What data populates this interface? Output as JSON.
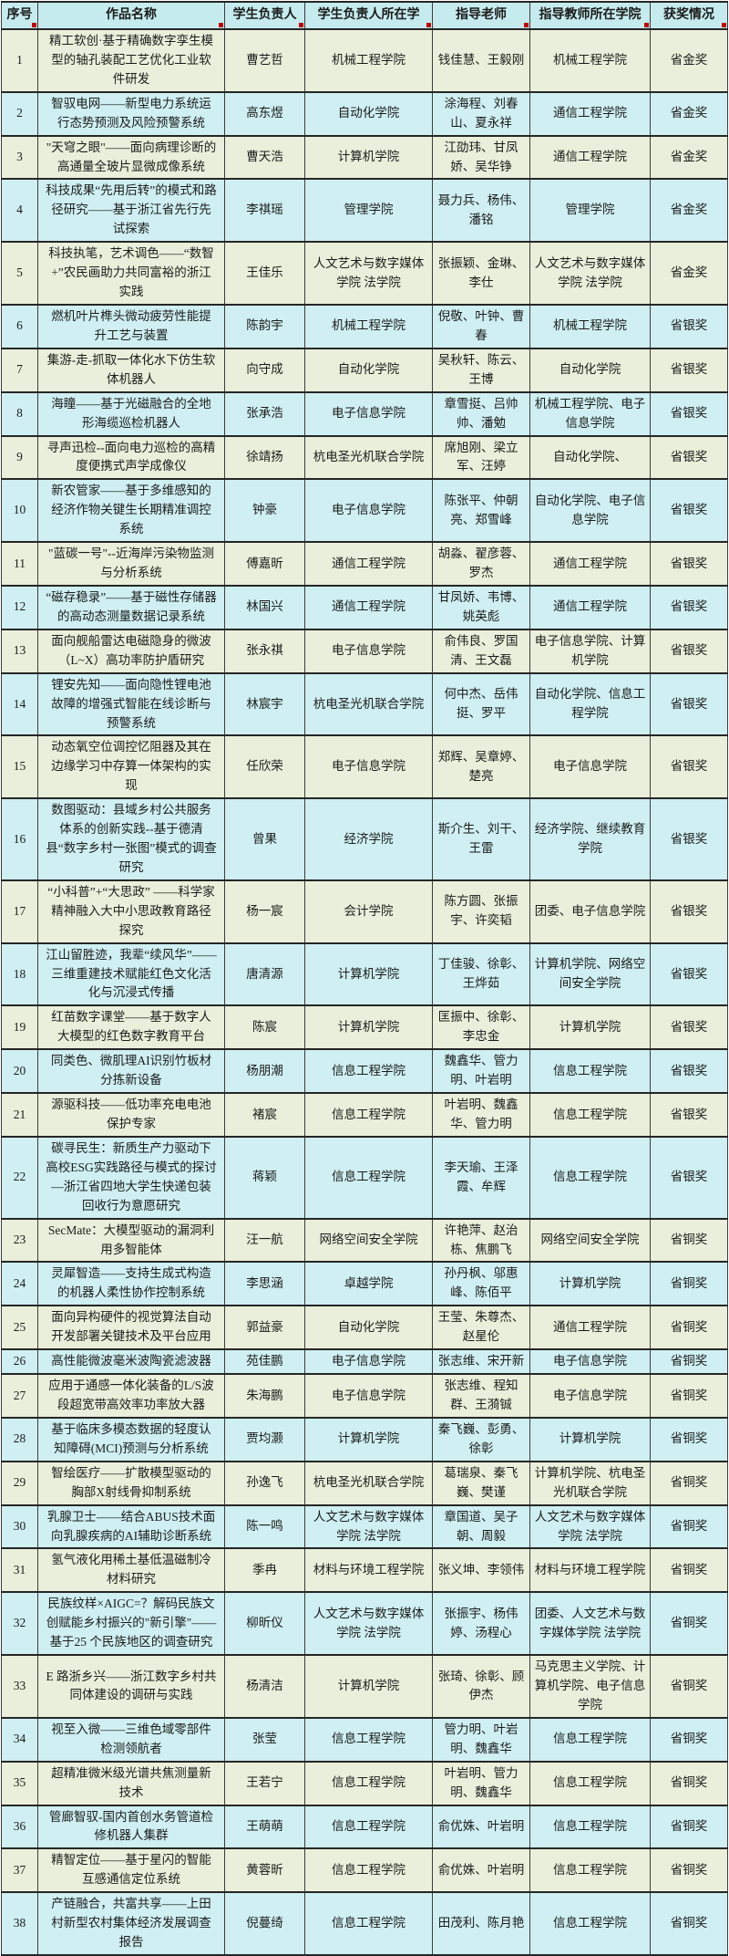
{
  "table": {
    "colors": {
      "header_bg": "#c6ebee",
      "row_cyan": "#cfeff2",
      "row_green": "#e9efda",
      "border": "#3c3c3c",
      "marker_red": "#c00000"
    },
    "columns": [
      "序号",
      "作品名称",
      "学生负责人",
      "学生负责人所在学",
      "指导老师",
      "指导教师所在学院",
      "获奖情况"
    ],
    "rows": [
      {
        "no": "1",
        "title": "精工软创·基于精确数字孪生模型的轴孔装配工艺优化工业软件研发",
        "student": "曹艺哲",
        "student_college": "机械工程学院",
        "advisors": "钱佳慧、王毅刚",
        "advisor_college": "机械工程学院",
        "award": "省金奖"
      },
      {
        "no": "2",
        "title": "智驭电网——新型电力系统运行态势预测及风险预警系统",
        "student": "高东煜",
        "student_college": "自动化学院",
        "advisors": "涂海程、刘春山、夏永祥",
        "advisor_college": "通信工程学院",
        "award": "省金奖"
      },
      {
        "no": "3",
        "title": "\"天穹之眼\"——面向病理诊断的高通量全玻片显微成像系统",
        "student": "曹天浩",
        "student_college": "计算机学院",
        "advisors": "江劭玮、甘凤娇、吴华铮",
        "advisor_college": "通信工程学院",
        "award": "省金奖"
      },
      {
        "no": "4",
        "title": "科技成果“先用后转”的模式和路径研究——基于浙江省先行先试探索",
        "student": "李祺瑶",
        "student_college": "管理学院",
        "advisors": "聂力兵、杨伟、潘铭",
        "advisor_college": "管理学院",
        "award": "省金奖"
      },
      {
        "no": "5",
        "title": "科技执笔，艺术调色——“数智+”农民画助力共同富裕的浙江实践",
        "student": "王佳乐",
        "student_college": "人文艺术与数字媒体学院 法学院",
        "advisors": "张振颖、金琳、李仕",
        "advisor_college": "人文艺术与数字媒体学院 法学院",
        "award": "省金奖"
      },
      {
        "no": "6",
        "title": "燃机叶片榫头微动疲劳性能提升工艺与装置",
        "student": "陈韵宇",
        "student_college": "机械工程学院",
        "advisors": "倪敬、叶钟、曹春",
        "advisor_college": "机械工程学院",
        "award": "省银奖"
      },
      {
        "no": "7",
        "title": "集游-走-抓取一体化水下仿生软体机器人",
        "student": "向守成",
        "student_college": "自动化学院",
        "advisors": "吴秋轩、陈云、王博",
        "advisor_college": "自动化学院",
        "award": "省银奖"
      },
      {
        "no": "8",
        "title": "海瞳——基于光磁融合的全地形海缆巡检机器人",
        "student": "张承浩",
        "student_college": "电子信息学院",
        "advisors": "章雪挺、吕帅帅、潘勉",
        "advisor_college": "机械工程学院、电子信息学院",
        "award": "省银奖"
      },
      {
        "no": "9",
        "title": "寻声迅检--面向电力巡检的高精度便携式声学成像仪",
        "student": "徐靖扬",
        "student_college": "杭电圣光机联合学院",
        "advisors": "席旭刚、梁立军、汪婷",
        "advisor_college": "自动化学院、",
        "award": "省银奖"
      },
      {
        "no": "10",
        "title": "新农管家——基于多维感知的经济作物关键生长期精准调控系统",
        "student": "钟豪",
        "student_college": "电子信息学院",
        "advisors": "陈张平、仲朝亮、郑雪峰",
        "advisor_college": "自动化学院、电子信息学院",
        "award": "省银奖"
      },
      {
        "no": "11",
        "title": "\"蓝碳一号\"--近海岸污染物监测与分析系统",
        "student": "傅嘉昕",
        "student_college": "通信工程学院",
        "advisors": "胡淼、翟彦蓉、罗杰",
        "advisor_college": "通信工程学院",
        "award": "省银奖"
      },
      {
        "no": "12",
        "title": "“磁存稳录”——基于磁性存储器的高动态测量数据记录系统",
        "student": "林国兴",
        "student_college": "通信工程学院",
        "advisors": "甘凤娇、韦博、姚英彪",
        "advisor_college": "通信工程学院",
        "award": "省银奖"
      },
      {
        "no": "13",
        "title": "面向舰船雷达电磁隐身的微波（L~X）高功率防护盾研究",
        "student": "张永祺",
        "student_college": "电子信息学院",
        "advisors": "俞伟良、罗国清、王文磊",
        "advisor_college": "电子信息学院、计算机学院",
        "award": "省银奖"
      },
      {
        "no": "14",
        "title": "锂安先知——面向隐性锂电池故障的增强式智能在线诊断与预警系统",
        "student": "林宸宇",
        "student_college": "杭电圣光机联合学院",
        "advisors": "何中杰、岳伟挺、罗平",
        "advisor_college": "自动化学院、信息工程学院",
        "award": "省银奖"
      },
      {
        "no": "15",
        "title": "动态氧空位调控忆阻器及其在边缘学习中存算一体架构的实现",
        "student": "任欣荣",
        "student_college": "电子信息学院",
        "advisors": "郑辉、吴章婷、楚亮",
        "advisor_college": "电子信息学院",
        "award": "省银奖"
      },
      {
        "no": "16",
        "title": "数图驱动：县域乡村公共服务体系的创新实践--基于德清县“数字乡村一张图”模式的调查研究",
        "student": "曾果",
        "student_college": "经济学院",
        "advisors": "斯介生、刘干、王雷",
        "advisor_college": "经济学院、继续教育学院",
        "award": "省银奖"
      },
      {
        "no": "17",
        "title": "“小科普”+“大思政” ——科学家精神融入大中小思政教育路径探究",
        "student": "杨一宸",
        "student_college": "会计学院",
        "advisors": "陈方圆、张振宇、许奕韬",
        "advisor_college": "团委、电子信息学院",
        "award": "省银奖"
      },
      {
        "no": "18",
        "title": "江山留胜迹，我辈“续风华”——三维重建技术赋能红色文化活化与沉浸式传播",
        "student": "唐清源",
        "student_college": "计算机学院",
        "advisors": "丁佳骏、徐彰、王烨茹",
        "advisor_college": "计算机学院、网络空间安全学院",
        "award": "省银奖"
      },
      {
        "no": "19",
        "title": "红苗数字课堂——基于数字人大模型的红色数字教育平台",
        "student": "陈宸",
        "student_college": "计算机学院",
        "advisors": "匡振中、徐彰、李忠金",
        "advisor_college": "计算机学院",
        "award": "省银奖"
      },
      {
        "no": "20",
        "title": "同类色、微肌理AI识别竹板材分拣新设备",
        "student": "杨朋潮",
        "student_college": "信息工程学院",
        "advisors": "魏鑫华、管力明、叶岩明",
        "advisor_college": "信息工程学院",
        "award": "省银奖"
      },
      {
        "no": "21",
        "title": "源驱科技——低功率充电电池保护专家",
        "student": "褚宸",
        "student_college": "信息工程学院",
        "advisors": "叶岩明、魏鑫华、管力明",
        "advisor_college": "信息工程学院",
        "award": "省银奖"
      },
      {
        "no": "22",
        "title": "碳寻民生：新质生产力驱动下高校ESG实践路径与模式的探讨—浙江省四地大学生快递包装回收行为意愿研究",
        "student": "蒋颖",
        "student_college": "信息工程学院",
        "advisors": "李天瑜、王泽霞、牟辉",
        "advisor_college": "信息工程学院",
        "award": "省银奖"
      },
      {
        "no": "23",
        "title": "SecMate：大模型驱动的漏洞利用多智能体",
        "student": "汪一航",
        "student_college": "网络空间安全学院",
        "advisors": "许艳萍、赵治栋、焦鹏飞",
        "advisor_college": "网络空间安全学院",
        "award": "省铜奖"
      },
      {
        "no": "24",
        "title": "灵犀智造——支持生成式构造的机器人柔性协作控制系统",
        "student": "李思涵",
        "student_college": "卓越学院",
        "advisors": "孙丹枫、邬惠峰、陈佰平",
        "advisor_college": "计算机学院",
        "award": "省铜奖"
      },
      {
        "no": "25",
        "title": "面向异构硬件的视觉算法自动开发部署关键技术及平台应用",
        "student": "郭益豪",
        "student_college": "自动化学院",
        "advisors": "王莹、朱尊杰、赵星伦",
        "advisor_college": "通信工程学院",
        "award": "省铜奖"
      },
      {
        "no": "26",
        "title": "高性能微波毫米波陶瓷滤波器",
        "student": "苑佳鹏",
        "student_college": "电子信息学院",
        "advisors": "张志维、宋开新",
        "advisor_college": "电子信息学院",
        "award": "省铜奖"
      },
      {
        "no": "27",
        "title": "应用于通感一体化装备的L/S波段超宽带高效率功率放大器",
        "student": "朱海鹏",
        "student_college": "电子信息学院",
        "advisors": "张志维、程知群、王漪铖",
        "advisor_college": "电子信息学院",
        "award": "省铜奖"
      },
      {
        "no": "28",
        "title": "基于临床多模态数据的轻度认知障碍(MCI)预测与分析系统",
        "student": "贾均灏",
        "student_college": "计算机学院",
        "advisors": "秦飞巍、彭勇、徐彰",
        "advisor_college": "计算机学院",
        "award": "省铜奖"
      },
      {
        "no": "29",
        "title": "智绘医疗——扩散模型驱动的胸部X射线骨抑制系统",
        "student": "孙逸飞",
        "student_college": "杭电圣光机联合学院",
        "advisors": "葛瑞泉、秦飞巍、樊谨",
        "advisor_college": "计算机学院、杭电圣光机联合学院",
        "award": "省铜奖"
      },
      {
        "no": "30",
        "title": "乳腺卫士——结合ABUS技术面向乳腺疾病的AI辅助诊断系统",
        "student": "陈一鸣",
        "student_college": "人文艺术与数字媒体学院 法学院",
        "advisors": "章国道、吴子朝、周毅",
        "advisor_college": "人文艺术与数字媒体学院 法学院",
        "award": "省铜奖"
      },
      {
        "no": "31",
        "title": "氢气液化用稀土基低温磁制冷材料研究",
        "student": "季冉",
        "student_college": "材料与环境工程学院",
        "advisors": "张义坤、李领伟",
        "advisor_college": "材料与环境工程学院",
        "award": "省铜奖"
      },
      {
        "no": "32",
        "title": "民族纹样×AIGC=？解码民族文创赋能乡村振兴的\"新引擎\"——基于25 个民族地区的调查研究",
        "student": "柳昕仪",
        "student_college": "人文艺术与数字媒体学院 法学院",
        "advisors": "张振宇、杨伟婷、汤程心",
        "advisor_college": "团委、人文艺术与数字媒体学院 法学院",
        "award": "省铜奖"
      },
      {
        "no": "33",
        "title": "E 路浙乡兴——浙江数字乡村共同体建设的调研与实践",
        "student": "杨清洁",
        "student_college": "计算机学院",
        "advisors": "张琦、徐彰、顾伊杰",
        "advisor_college": "马克思主义学院、计算机学院、电子信息学院",
        "award": "省铜奖"
      },
      {
        "no": "34",
        "title": "视至入微——三维色域零部件检测领航者",
        "student": "张莹",
        "student_college": "信息工程学院",
        "advisors": "管力明、叶岩明、魏鑫华",
        "advisor_college": "信息工程学院",
        "award": "省铜奖"
      },
      {
        "no": "35",
        "title": "超精准微米级光谱共焦测量新技术",
        "student": "王若宁",
        "student_college": "信息工程学院",
        "advisors": "叶岩明、管力明、魏鑫华",
        "advisor_college": "信息工程学院",
        "award": "省铜奖"
      },
      {
        "no": "36",
        "title": "管廊智驭-国内首创水务管道检修机器人集群",
        "student": "王萌萌",
        "student_college": "信息工程学院",
        "advisors": "俞优姝、叶岩明",
        "advisor_college": "信息工程学院",
        "award": "省铜奖"
      },
      {
        "no": "37",
        "title": "精智定位——基于星闪的智能互感通信定位系统",
        "student": "黄蓉昕",
        "student_college": "信息工程学院",
        "advisors": "俞优姝、叶岩明",
        "advisor_college": "信息工程学院",
        "award": "省铜奖"
      },
      {
        "no": "38",
        "title": "产链融合，共富共享——上田村新型农村集体经济发展调查报告",
        "student": "倪蔓绮",
        "student_college": "信息工程学院",
        "advisors": "田茂利、陈月艳",
        "advisor_college": "信息工程学院",
        "award": "省铜奖"
      }
    ]
  }
}
